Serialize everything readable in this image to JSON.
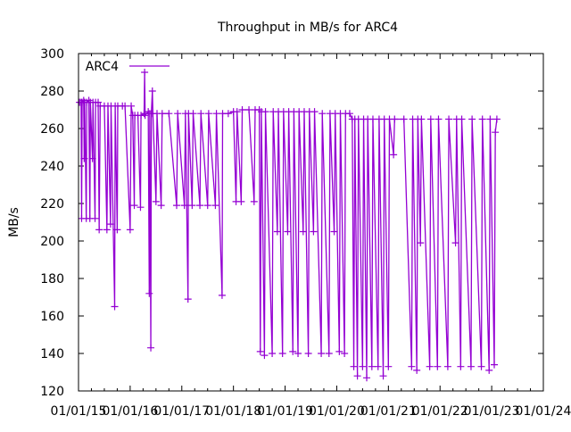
{
  "chart_data": {
    "type": "line",
    "title": "Throughput in MB/s for ARC4",
    "xlabel": "",
    "ylabel": "MB/s",
    "xlim": [
      2015,
      2024
    ],
    "ylim": [
      120,
      300
    ],
    "yticks": [
      120,
      140,
      160,
      180,
      200,
      220,
      240,
      260,
      280,
      300
    ],
    "xtick_labels": [
      "01/01/15",
      "01/01/16",
      "01/01/17",
      "01/01/18",
      "01/01/19",
      "01/01/20",
      "01/01/21",
      "01/01/22",
      "01/01/23",
      "01/01/24"
    ],
    "grid": false,
    "legend": {
      "position": "top-left",
      "entries": [
        "ARC4"
      ]
    },
    "color": "#9400d3",
    "series": [
      {
        "name": "ARC4",
        "points": [
          [
            2015.02,
            274
          ],
          [
            2015.05,
            274
          ],
          [
            2015.06,
            212
          ],
          [
            2015.07,
            274
          ],
          [
            2015.1,
            275
          ],
          [
            2015.11,
            244
          ],
          [
            2015.12,
            274
          ],
          [
            2015.15,
            212
          ],
          [
            2015.16,
            274
          ],
          [
            2015.2,
            275
          ],
          [
            2015.22,
            212
          ],
          [
            2015.23,
            274
          ],
          [
            2015.27,
            244
          ],
          [
            2015.28,
            274
          ],
          [
            2015.32,
            212
          ],
          [
            2015.33,
            274
          ],
          [
            2015.38,
            274
          ],
          [
            2015.4,
            206
          ],
          [
            2015.42,
            272
          ],
          [
            2015.5,
            272
          ],
          [
            2015.55,
            206
          ],
          [
            2015.57,
            272
          ],
          [
            2015.62,
            209
          ],
          [
            2015.63,
            272
          ],
          [
            2015.7,
            165
          ],
          [
            2015.71,
            272
          ],
          [
            2015.75,
            206
          ],
          [
            2015.76,
            272
          ],
          [
            2015.85,
            272
          ],
          [
            2015.9,
            272
          ],
          [
            2016.0,
            206
          ],
          [
            2016.02,
            272
          ],
          [
            2016.05,
            267
          ],
          [
            2016.08,
            219
          ],
          [
            2016.09,
            267
          ],
          [
            2016.15,
            267
          ],
          [
            2016.2,
            218
          ],
          [
            2016.21,
            267
          ],
          [
            2016.27,
            268
          ],
          [
            2016.28,
            290
          ],
          [
            2016.29,
            267
          ],
          [
            2016.35,
            269
          ],
          [
            2016.37,
            172
          ],
          [
            2016.38,
            268
          ],
          [
            2016.4,
            143
          ],
          [
            2016.41,
            268
          ],
          [
            2016.43,
            280
          ],
          [
            2016.44,
            268
          ],
          [
            2016.5,
            221
          ],
          [
            2016.52,
            268
          ],
          [
            2016.6,
            219
          ],
          [
            2016.62,
            268
          ],
          [
            2016.75,
            268
          ],
          [
            2016.9,
            219
          ],
          [
            2016.92,
            268
          ],
          [
            2017.05,
            219
          ],
          [
            2017.07,
            268
          ],
          [
            2017.12,
            169
          ],
          [
            2017.13,
            268
          ],
          [
            2017.2,
            219
          ],
          [
            2017.22,
            268
          ],
          [
            2017.35,
            219
          ],
          [
            2017.37,
            268
          ],
          [
            2017.5,
            219
          ],
          [
            2017.52,
            268
          ],
          [
            2017.65,
            219
          ],
          [
            2017.67,
            268
          ],
          [
            2017.78,
            171
          ],
          [
            2017.79,
            268
          ],
          [
            2017.9,
            268
          ],
          [
            2018.0,
            269
          ],
          [
            2018.05,
            221
          ],
          [
            2018.07,
            269
          ],
          [
            2018.15,
            221
          ],
          [
            2018.17,
            270
          ],
          [
            2018.3,
            270
          ],
          [
            2018.4,
            221
          ],
          [
            2018.42,
            270
          ],
          [
            2018.5,
            270
          ],
          [
            2018.52,
            141
          ],
          [
            2018.54,
            269
          ],
          [
            2018.6,
            139
          ],
          [
            2018.62,
            269
          ],
          [
            2018.75,
            140
          ],
          [
            2018.77,
            269
          ],
          [
            2018.85,
            205
          ],
          [
            2018.87,
            269
          ],
          [
            2018.95,
            140
          ],
          [
            2018.97,
            269
          ],
          [
            2019.05,
            205
          ],
          [
            2019.07,
            269
          ],
          [
            2019.15,
            141
          ],
          [
            2019.17,
            269
          ],
          [
            2019.25,
            140
          ],
          [
            2019.27,
            269
          ],
          [
            2019.35,
            205
          ],
          [
            2019.37,
            269
          ],
          [
            2019.45,
            140
          ],
          [
            2019.47,
            269
          ],
          [
            2019.55,
            205
          ],
          [
            2019.57,
            269
          ],
          [
            2019.7,
            140
          ],
          [
            2019.72,
            268
          ],
          [
            2019.85,
            140
          ],
          [
            2019.87,
            268
          ],
          [
            2019.95,
            205
          ],
          [
            2019.97,
            268
          ],
          [
            2020.05,
            141
          ],
          [
            2020.07,
            268
          ],
          [
            2020.15,
            140
          ],
          [
            2020.17,
            268
          ],
          [
            2020.25,
            268
          ],
          [
            2020.3,
            265
          ],
          [
            2020.33,
            133
          ],
          [
            2020.35,
            265
          ],
          [
            2020.4,
            128
          ],
          [
            2020.42,
            265
          ],
          [
            2020.5,
            133
          ],
          [
            2020.52,
            265
          ],
          [
            2020.58,
            127
          ],
          [
            2020.6,
            265
          ],
          [
            2020.68,
            133
          ],
          [
            2020.7,
            265
          ],
          [
            2020.8,
            133
          ],
          [
            2020.82,
            265
          ],
          [
            2020.9,
            128
          ],
          [
            2020.92,
            265
          ],
          [
            2021.0,
            133
          ],
          [
            2021.02,
            265
          ],
          [
            2021.1,
            246
          ],
          [
            2021.12,
            265
          ],
          [
            2021.3,
            265
          ],
          [
            2021.45,
            133
          ],
          [
            2021.47,
            265
          ],
          [
            2021.55,
            131
          ],
          [
            2021.57,
            265
          ],
          [
            2021.62,
            199
          ],
          [
            2021.64,
            265
          ],
          [
            2021.8,
            133
          ],
          [
            2021.82,
            265
          ],
          [
            2021.95,
            133
          ],
          [
            2021.97,
            265
          ],
          [
            2022.15,
            133
          ],
          [
            2022.17,
            265
          ],
          [
            2022.3,
            199
          ],
          [
            2022.32,
            265
          ],
          [
            2022.4,
            133
          ],
          [
            2022.42,
            265
          ],
          [
            2022.6,
            133
          ],
          [
            2022.62,
            265
          ],
          [
            2022.8,
            133
          ],
          [
            2022.82,
            265
          ],
          [
            2022.95,
            131
          ],
          [
            2022.97,
            265
          ],
          [
            2023.05,
            134
          ],
          [
            2023.07,
            258
          ],
          [
            2023.1,
            265
          ]
        ]
      }
    ]
  }
}
